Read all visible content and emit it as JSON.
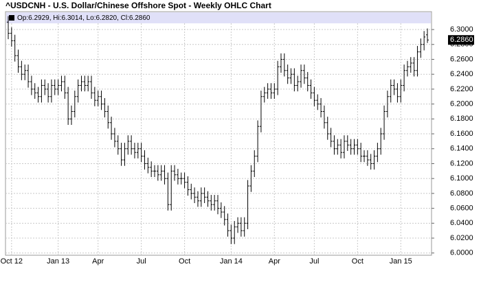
{
  "chart_data": {
    "type": "ohlc",
    "title": "^USDCNH - U.S. Dollar/Chinese Offshore Spot - Weekly OHLC Chart",
    "legend_text": "Op:6.2929, Hi:6.3014, Lo:6.2820, Cl:6.2860",
    "last_label": {
      "value": 6.286,
      "label": "6.2860"
    },
    "categories": [
      null,
      "Oct 12",
      null,
      null,
      null,
      null,
      null,
      null,
      null,
      null,
      null,
      null,
      null,
      null,
      null,
      "Jan 13",
      null,
      null,
      null,
      null,
      null,
      null,
      null,
      null,
      null,
      null,
      null,
      "Apr",
      null,
      null,
      null,
      null,
      null,
      null,
      null,
      null,
      null,
      null,
      null,
      null,
      "Jul",
      null,
      null,
      null,
      null,
      null,
      null,
      null,
      null,
      null,
      null,
      null,
      null,
      "Oct",
      null,
      null,
      null,
      null,
      null,
      null,
      null,
      null,
      null,
      null,
      null,
      null,
      null,
      "Jan 14",
      null,
      null,
      null,
      null,
      null,
      null,
      null,
      null,
      null,
      null,
      null,
      null,
      "Apr",
      null,
      null,
      null,
      null,
      null,
      null,
      null,
      null,
      null,
      null,
      null,
      "Jul",
      null,
      null,
      null,
      null,
      null,
      null,
      null,
      null,
      null,
      null,
      null,
      null,
      "Oct",
      null,
      null,
      null,
      null,
      null,
      null,
      null,
      null,
      null,
      null,
      null,
      null,
      "Jan 15",
      null,
      null,
      null,
      null,
      null,
      null,
      null,
      null
    ],
    "open": [
      6.31,
      6.295,
      6.285,
      6.265,
      6.25,
      6.24,
      6.245,
      6.23,
      6.22,
      6.215,
      6.21,
      6.225,
      6.22,
      6.21,
      6.225,
      6.22,
      6.225,
      6.23,
      6.215,
      6.18,
      6.19,
      6.21,
      6.225,
      6.23,
      6.225,
      6.23,
      6.215,
      6.205,
      6.21,
      6.2,
      6.19,
      6.175,
      6.16,
      6.15,
      6.14,
      6.125,
      6.14,
      6.15,
      6.14,
      6.135,
      6.14,
      6.13,
      6.12,
      6.115,
      6.11,
      6.11,
      6.105,
      6.11,
      6.1,
      6.065,
      6.11,
      6.105,
      6.1,
      6.1,
      6.095,
      6.085,
      6.08,
      6.075,
      6.07,
      6.08,
      6.075,
      6.07,
      6.065,
      6.07,
      6.06,
      6.055,
      6.045,
      6.03,
      6.02,
      6.035,
      6.04,
      6.03,
      6.04,
      6.09,
      6.11,
      6.13,
      6.17,
      6.21,
      6.215,
      6.22,
      6.215,
      6.22,
      6.25,
      6.26,
      6.245,
      6.235,
      6.24,
      6.225,
      6.23,
      6.245,
      6.235,
      6.225,
      6.215,
      6.205,
      6.2,
      6.19,
      6.175,
      6.16,
      6.15,
      6.14,
      6.145,
      6.135,
      6.15,
      6.145,
      6.14,
      6.145,
      6.14,
      6.13,
      6.13,
      6.125,
      6.12,
      6.13,
      6.14,
      6.16,
      6.19,
      6.21,
      6.225,
      6.22,
      6.21,
      6.225,
      6.245,
      6.25,
      6.255,
      6.245,
      6.27,
      6.28,
      6.2929
    ],
    "high": [
      6.318,
      6.303,
      6.293,
      6.273,
      6.258,
      6.253,
      6.253,
      6.238,
      6.228,
      6.223,
      6.233,
      6.233,
      6.228,
      6.233,
      6.233,
      6.233,
      6.238,
      6.238,
      6.223,
      6.198,
      6.218,
      6.233,
      6.238,
      6.238,
      6.238,
      6.238,
      6.223,
      6.218,
      6.218,
      6.208,
      6.198,
      6.183,
      6.168,
      6.158,
      6.148,
      6.148,
      6.158,
      6.158,
      6.148,
      6.148,
      6.148,
      6.138,
      6.128,
      6.123,
      6.118,
      6.118,
      6.118,
      6.118,
      6.108,
      6.118,
      6.118,
      6.113,
      6.108,
      6.108,
      6.103,
      6.093,
      6.088,
      6.083,
      6.088,
      6.088,
      6.083,
      6.078,
      6.078,
      6.078,
      6.068,
      6.063,
      6.053,
      6.038,
      6.043,
      6.048,
      6.048,
      6.048,
      6.098,
      6.118,
      6.138,
      6.178,
      6.218,
      6.223,
      6.228,
      6.228,
      6.228,
      6.258,
      6.268,
      6.268,
      6.253,
      6.248,
      6.248,
      6.238,
      6.253,
      6.253,
      6.243,
      6.233,
      6.223,
      6.213,
      6.208,
      6.198,
      6.183,
      6.168,
      6.158,
      6.153,
      6.153,
      6.158,
      6.158,
      6.153,
      6.153,
      6.153,
      6.148,
      6.138,
      6.138,
      6.133,
      6.138,
      6.148,
      6.168,
      6.198,
      6.218,
      6.233,
      6.233,
      6.228,
      6.233,
      6.253,
      6.258,
      6.263,
      6.263,
      6.278,
      6.288,
      6.298,
      6.3014
    ],
    "low": [
      6.287,
      6.277,
      6.257,
      6.242,
      6.232,
      6.232,
      6.222,
      6.212,
      6.207,
      6.202,
      6.202,
      6.212,
      6.202,
      6.202,
      6.212,
      6.212,
      6.217,
      6.207,
      6.172,
      6.172,
      6.182,
      6.202,
      6.217,
      6.217,
      6.217,
      6.207,
      6.197,
      6.197,
      6.192,
      6.182,
      6.167,
      6.152,
      6.142,
      6.132,
      6.117,
      6.117,
      6.132,
      6.132,
      6.127,
      6.127,
      6.122,
      6.112,
      6.107,
      6.102,
      6.102,
      6.097,
      6.097,
      6.092,
      6.057,
      6.057,
      6.097,
      6.092,
      6.092,
      6.087,
      6.077,
      6.072,
      6.067,
      6.062,
      6.062,
      6.067,
      6.062,
      6.057,
      6.057,
      6.052,
      6.047,
      6.037,
      6.022,
      6.012,
      6.012,
      6.027,
      6.022,
      6.022,
      6.032,
      6.082,
      6.102,
      6.122,
      6.162,
      6.202,
      6.207,
      6.207,
      6.207,
      6.212,
      6.242,
      6.237,
      6.227,
      6.227,
      6.217,
      6.217,
      6.222,
      6.227,
      6.217,
      6.207,
      6.197,
      6.192,
      6.182,
      6.167,
      6.152,
      6.142,
      6.132,
      6.132,
      6.127,
      6.127,
      6.137,
      6.132,
      6.132,
      6.132,
      6.122,
      6.122,
      6.117,
      6.112,
      6.112,
      6.122,
      6.132,
      6.152,
      6.182,
      6.202,
      6.212,
      6.202,
      6.202,
      6.217,
      6.237,
      6.242,
      6.237,
      6.237,
      6.262,
      6.272,
      6.282
    ],
    "close": [
      6.295,
      6.285,
      6.265,
      6.25,
      6.24,
      6.245,
      6.23,
      6.22,
      6.215,
      6.21,
      6.225,
      6.22,
      6.21,
      6.225,
      6.22,
      6.225,
      6.23,
      6.215,
      6.18,
      6.19,
      6.21,
      6.225,
      6.23,
      6.225,
      6.23,
      6.215,
      6.205,
      6.21,
      6.2,
      6.19,
      6.175,
      6.16,
      6.15,
      6.14,
      6.125,
      6.14,
      6.15,
      6.14,
      6.135,
      6.14,
      6.13,
      6.12,
      6.115,
      6.11,
      6.11,
      6.105,
      6.11,
      6.1,
      6.065,
      6.11,
      6.105,
      6.1,
      6.1,
      6.095,
      6.085,
      6.08,
      6.075,
      6.07,
      6.08,
      6.075,
      6.07,
      6.065,
      6.07,
      6.06,
      6.055,
      6.045,
      6.03,
      6.02,
      6.035,
      6.04,
      6.03,
      6.04,
      6.09,
      6.11,
      6.13,
      6.17,
      6.21,
      6.215,
      6.22,
      6.215,
      6.22,
      6.25,
      6.26,
      6.245,
      6.235,
      6.24,
      6.225,
      6.23,
      6.245,
      6.235,
      6.225,
      6.215,
      6.205,
      6.2,
      6.19,
      6.175,
      6.16,
      6.15,
      6.14,
      6.145,
      6.135,
      6.15,
      6.145,
      6.14,
      6.145,
      6.14,
      6.13,
      6.13,
      6.125,
      6.12,
      6.13,
      6.14,
      6.16,
      6.19,
      6.21,
      6.225,
      6.22,
      6.21,
      6.225,
      6.245,
      6.25,
      6.255,
      6.245,
      6.27,
      6.28,
      6.29,
      6.286
    ],
    "color": "#000000",
    "ylim": [
      5.997,
      6.324
    ],
    "yticks": [
      {
        "value": 6.0,
        "label": "6.0000"
      },
      {
        "value": 6.02,
        "label": "6.0200"
      },
      {
        "value": 6.04,
        "label": "6.0400"
      },
      {
        "value": 6.06,
        "label": "6.0600"
      },
      {
        "value": 6.08,
        "label": "6.0800"
      },
      {
        "value": 6.1,
        "label": "6.1000"
      },
      {
        "value": 6.12,
        "label": "6.1200"
      },
      {
        "value": 6.14,
        "label": "6.1400"
      },
      {
        "value": 6.16,
        "label": "6.1600"
      },
      {
        "value": 6.18,
        "label": "6.1800"
      },
      {
        "value": 6.2,
        "label": "6.2000"
      },
      {
        "value": 6.22,
        "label": "6.2200"
      },
      {
        "value": 6.24,
        "label": "6.2400"
      },
      {
        "value": 6.26,
        "label": "6.2600"
      },
      {
        "value": 6.28,
        "label": "6.2800"
      },
      {
        "value": 6.3,
        "label": "6.3000"
      }
    ],
    "grid": true
  }
}
